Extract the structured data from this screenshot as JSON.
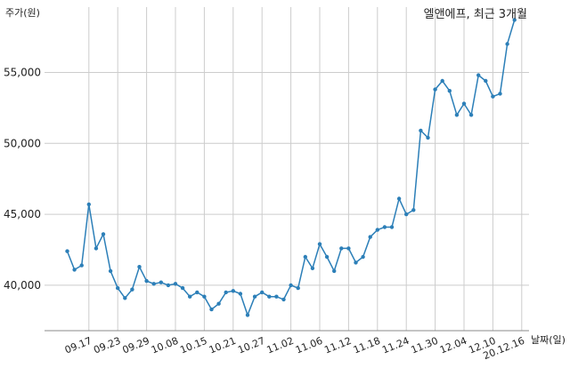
{
  "chart_data": {
    "type": "line",
    "title": "엘앤에프, 최근 3개월",
    "ylabel": "주가(원)",
    "xlabel": "날짜(일)",
    "ylim": [
      36800,
      59600
    ],
    "yticks": [
      40000,
      45000,
      50000,
      55000
    ],
    "ytick_labels": [
      "40,000",
      "45,000",
      "50,000",
      "55,000"
    ],
    "grid": true,
    "xtick_labels": [
      "09.17",
      "09.23",
      "09.29",
      "10.08",
      "10.15",
      "10.21",
      "10.27",
      "11.02",
      "11.06",
      "11.12",
      "11.18",
      "11.24",
      "11.30",
      "12.04",
      "12.10",
      "20.12.16"
    ],
    "xtick_index": [
      3,
      7,
      11,
      15,
      19,
      23,
      27,
      31,
      35,
      39,
      43,
      47,
      51,
      55,
      59,
      63
    ],
    "series": [
      {
        "color": "#2c7fb8",
        "values": [
          42400,
          41100,
          41400,
          45700,
          42600,
          43600,
          41000,
          39800,
          39100,
          39700,
          41300,
          40300,
          40100,
          40200,
          40000,
          40100,
          39800,
          39200,
          39500,
          39200,
          38300,
          38700,
          39500,
          39600,
          39400,
          37900,
          39200,
          39500,
          39200,
          39200,
          39000,
          40000,
          39800,
          42000,
          41200,
          42900,
          42000,
          41000,
          42600,
          42600,
          41600,
          42000,
          43400,
          43900,
          44100,
          44100,
          46100,
          45000,
          45300,
          50900,
          50400,
          53800,
          54400,
          53700,
          52000,
          52800,
          52000,
          54800,
          54400,
          53300,
          53500,
          57000,
          58700
        ]
      }
    ]
  }
}
